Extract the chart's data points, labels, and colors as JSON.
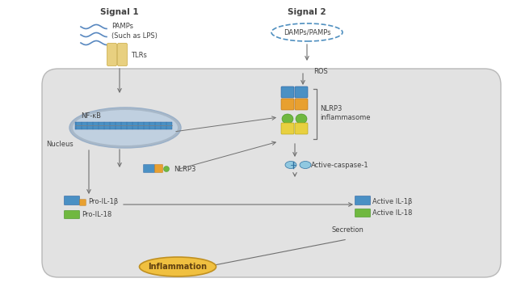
{
  "bg_color": "#ffffff",
  "cell_bg": "#e2e2e2",
  "nucleus_fill": "#c0d0e0",
  "nucleus_edge": "#9ab0c8",
  "nucleus_inner_fill": "#a8b8c8",
  "tlr_color": "#e8d080",
  "tlr_edge": "#c8a840",
  "blue_block": "#4a90c4",
  "blue_edge": "#2860a0",
  "orange_block": "#e8a030",
  "orange_edge": "#b87010",
  "green_block": "#70b840",
  "green_edge": "#409020",
  "yellow_block": "#e8d040",
  "yellow_edge": "#b0a010",
  "caspase_fill": "#90c8e0",
  "caspase_edge": "#3070a0",
  "pro_il1b_color": "#4a90c4",
  "pro_il18_color": "#70b840",
  "inflammation_fill": "#f0c040",
  "inflammation_edge": "#c09020",
  "arrow_color": "#707070",
  "text_color": "#404040",
  "damps_edge": "#5090c0",
  "signal1_text": "Signal 1",
  "signal2_text": "Signal 2",
  "pamps_text": "PAMPs\n(Such as LPS)",
  "tlrs_text": "TLRs",
  "damps_text": "DAMPs/PAMPs",
  "ros_text": "ROS",
  "nfkb_text": "NF-κB",
  "nucleus_text": "Nucleus",
  "nlrp3_label": "NLRP3",
  "nlrp3_inflammasome": "NLRP3\ninflammasome",
  "active_caspase": "Active-caspase-1",
  "pro_il1b_text": "Pro-IL-1β",
  "pro_il18_text": "Pro-IL-18",
  "active_il1b_text": "Active IL-1β",
  "active_il18_text": "Active IL-18",
  "secretion_text": "Secretion",
  "inflammation_text": "Inflammation"
}
